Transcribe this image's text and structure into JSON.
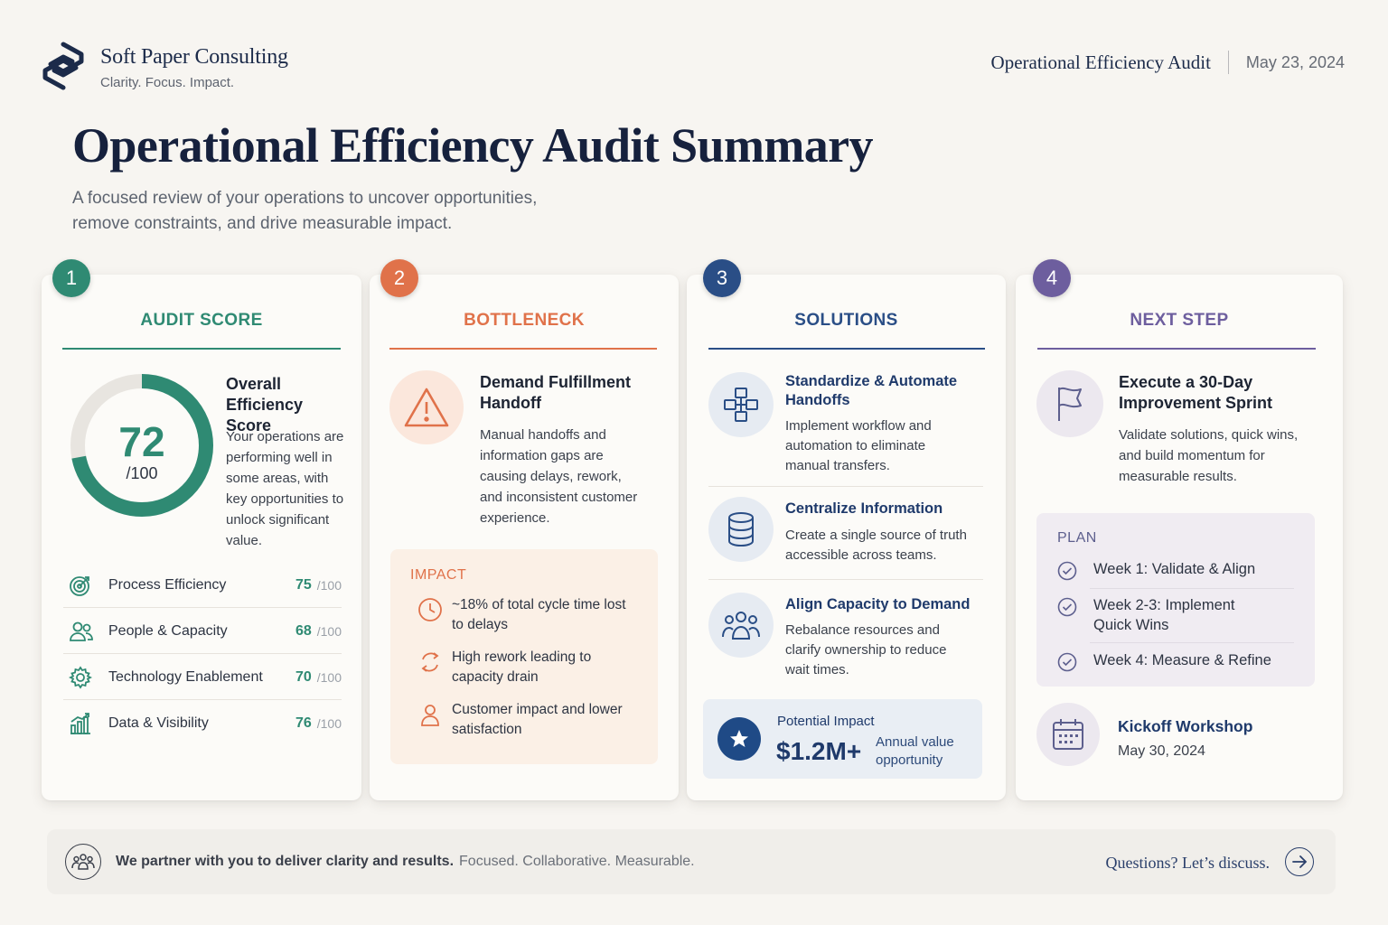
{
  "header": {
    "brand_name": "Soft Paper Consulting",
    "brand_tagline": "Clarity. Focus. Impact.",
    "report_title": "Operational Efficiency Audit",
    "report_date": "May 23, 2024"
  },
  "page": {
    "title": "Operational Efficiency Audit Summary",
    "subtitle_line1": "A focused review of your operations to uncover opportunities,",
    "subtitle_line2": "remove constraints, and drive measurable impact."
  },
  "colors": {
    "teal": "#2f8a73",
    "orange": "#e0724a",
    "blue": "#2a4e86",
    "purple": "#6d5e9e",
    "navy": "#16213d"
  },
  "cards": [
    {
      "number": "1",
      "title": "AUDIT SCORE",
      "score": "72",
      "score_max": "/100",
      "score_fraction": 0.72,
      "heading": "Overall Efficiency Score",
      "text": "Your operations are performing well in some areas, with key opportunities to unlock significant value.",
      "metrics": [
        {
          "icon": "target-icon",
          "label": "Process Efficiency",
          "value": "75",
          "max": "/100"
        },
        {
          "icon": "people-icon",
          "label": "People & Capacity",
          "value": "68",
          "max": "/100"
        },
        {
          "icon": "gear-icon",
          "label": "Technology Enablement",
          "value": "70",
          "max": "/100"
        },
        {
          "icon": "bar-chart-icon",
          "label": "Data & Visibility",
          "value": "76",
          "max": "/100"
        }
      ]
    },
    {
      "number": "2",
      "title": "BOTTLENECK",
      "icon": "warning-icon",
      "heading_line1": "Demand Fulfillment",
      "heading_line2": "Handoff",
      "text": "Manual handoffs and information gaps are causing delays, rework, and inconsistent customer experience.",
      "impact_title": "IMPACT",
      "impacts": [
        {
          "icon": "clock-icon",
          "text": "~18% of total cycle time lost to delays"
        },
        {
          "icon": "refresh-icon",
          "text": "High rework leading to capacity drain"
        },
        {
          "icon": "user-icon",
          "text": "Customer impact and lower satisfaction"
        }
      ]
    },
    {
      "number": "3",
      "title": "SOLUTIONS",
      "solutions": [
        {
          "icon": "workflow-icon",
          "title_line1": "Standardize & Automate",
          "title_line2": "Handoffs",
          "text": "Implement workflow and automation to eliminate manual transfers."
        },
        {
          "icon": "database-icon",
          "title_line1": "Centralize Information",
          "title_line2": "",
          "text": "Create a single source of truth accessible across teams."
        },
        {
          "icon": "team-icon",
          "title_line1": "Align Capacity to Demand",
          "title_line2": "",
          "text": "Rebalance resources and clarify ownership to reduce wait times."
        }
      ],
      "potential": {
        "icon": "star-icon",
        "label": "Potential Impact",
        "value": "$1.2M+",
        "note_line1": "Annual value",
        "note_line2": "opportunity"
      }
    },
    {
      "number": "4",
      "title": "NEXT STEP",
      "icon": "flag-icon",
      "heading_line1": "Execute a 30-Day",
      "heading_line2": "Improvement Sprint",
      "text": "Validate solutions, quick wins, and build momentum for measurable results.",
      "plan_title": "PLAN",
      "plan": [
        {
          "line1": "Week 1: Validate & Align",
          "line2": ""
        },
        {
          "line1": "Week 2-3: Implement",
          "line2": "Quick Wins"
        },
        {
          "line1": "Week 4: Measure & Refine",
          "line2": ""
        }
      ],
      "kickoff": {
        "icon": "calendar-icon",
        "title": "Kickoff Workshop",
        "date": "May 30, 2024"
      }
    }
  ],
  "footer": {
    "bold": "We partner with you to deliver clarity and results.",
    "soft": "Focused. Collaborative. Measurable.",
    "cta": "Questions? Let’s discuss."
  }
}
